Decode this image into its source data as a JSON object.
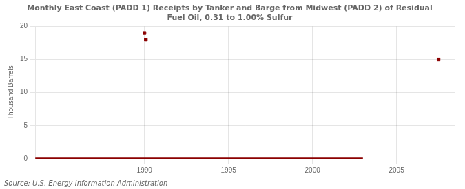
{
  "chart_data": {
    "type": "scatter",
    "title": "Monthly East Coast (PADD 1) Receipts by Tanker and Barge from Midwest (PADD 2) of Residual\nFuel Oil, 0.31 to 1.00% Sulfur",
    "ylabel": "Thousand Barrels",
    "annotations": [
      "Source: U.S. Energy Information Administration"
    ],
    "series": [
      {
        "type": "line",
        "color": "#8b0000",
        "line_style": "solid",
        "marker": "none",
        "x": [
          1983.5,
          2003.0
        ],
        "values": [
          0,
          0
        ]
      },
      {
        "type": "scatter",
        "color": "#8b0000",
        "marker": "square",
        "x": [
          1990.0,
          1990.083,
          2007.5
        ],
        "values": [
          19.0,
          18.0,
          15.0
        ]
      }
    ],
    "xlim": [
      1983.5,
      2008.5
    ],
    "xticks": [
      1990,
      1995,
      2000,
      2005
    ],
    "ylim": [
      0,
      20
    ],
    "yticks": [
      0,
      5,
      10,
      15,
      20
    ],
    "grid": true
  }
}
